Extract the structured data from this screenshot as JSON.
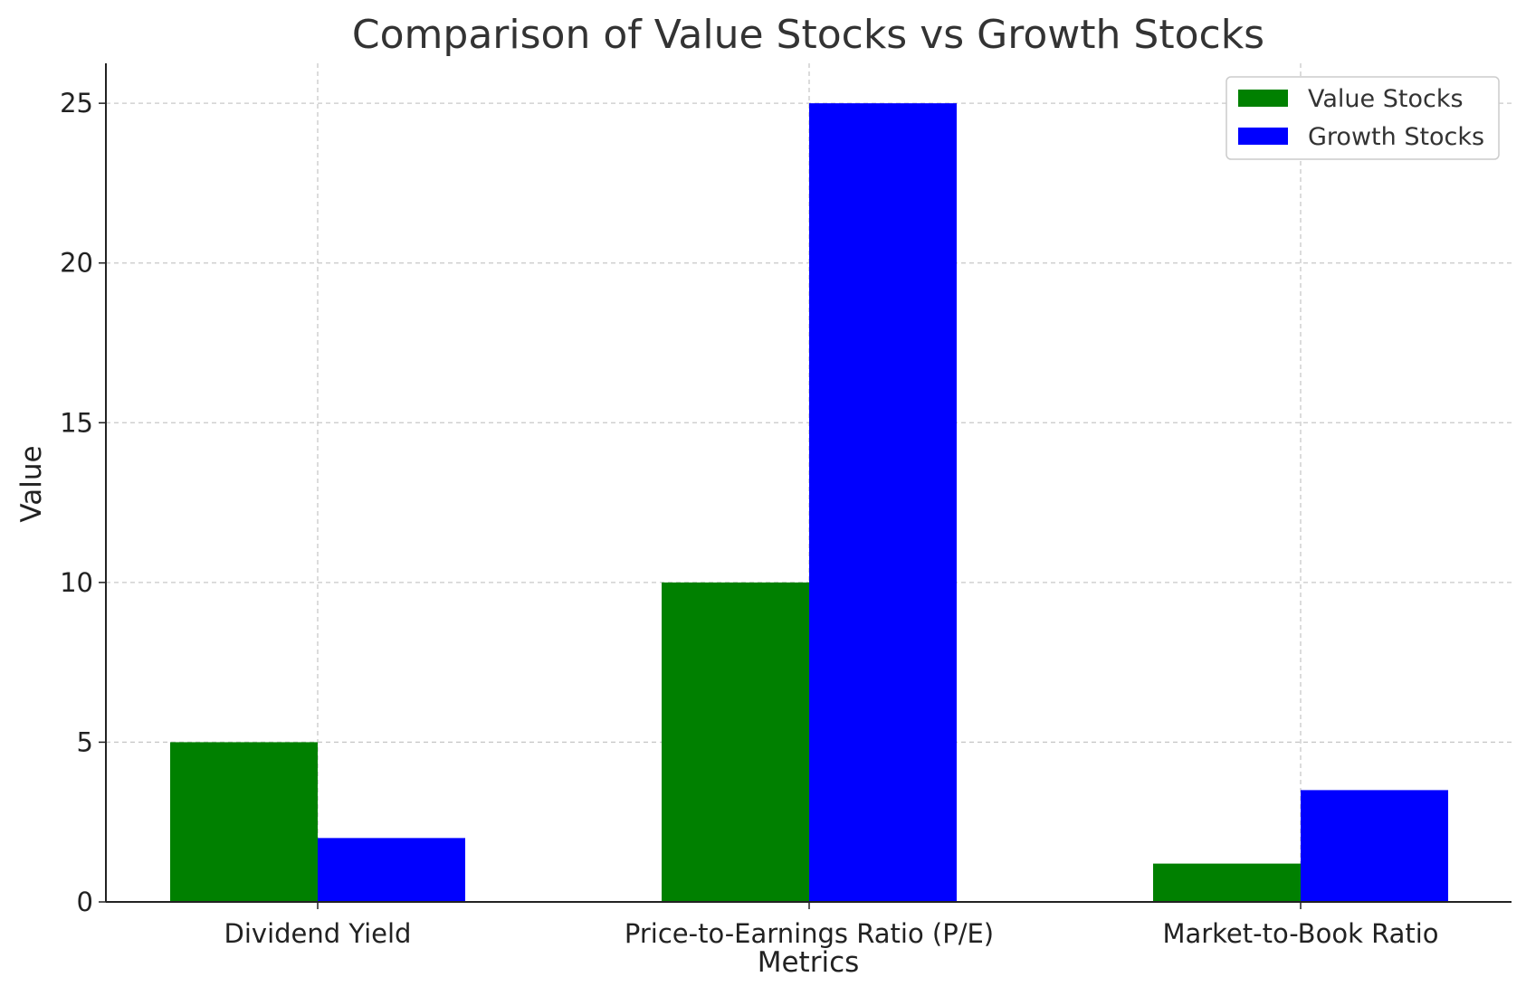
{
  "chart_data": {
    "type": "bar",
    "title": "Comparison of Value Stocks vs Growth Stocks",
    "xlabel": "Metrics",
    "ylabel": "Value",
    "categories": [
      "Dividend Yield",
      "Price-to-Earnings Ratio (P/E)",
      "Market-to-Book Ratio"
    ],
    "series": [
      {
        "name": "Value Stocks",
        "values": [
          5,
          10,
          1.2
        ],
        "color": "#008000"
      },
      {
        "name": "Growth Stocks",
        "values": [
          2,
          25,
          3.5
        ],
        "color": "#0000ff"
      }
    ],
    "ylim": [
      0,
      26.25
    ],
    "yticks": [
      0,
      5,
      10,
      15,
      20,
      25
    ],
    "grid": true,
    "legend_position": "top-right"
  }
}
